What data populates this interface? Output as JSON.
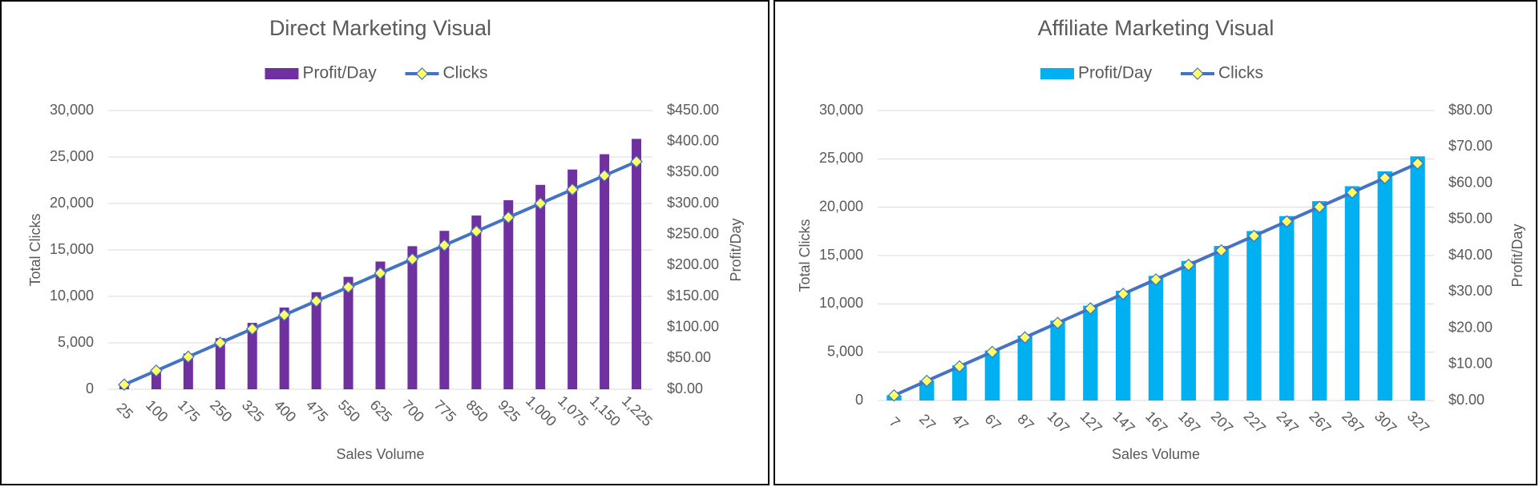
{
  "chart_data": [
    {
      "type": "combo",
      "title": "Direct Marketing Visual",
      "x_label": "Sales Volume",
      "y_label": "Total Clicks",
      "y2_label": "Profit/Day",
      "legend": "top",
      "grid": true,
      "categories": [
        "25",
        "100",
        "175",
        "250",
        "325",
        "400",
        "475",
        "550",
        "625",
        "700",
        "775",
        "850",
        "925",
        "1,000",
        "1,075",
        "1,150",
        "1,225"
      ],
      "series": [
        {
          "name": "Profit/Day",
          "type": "bar",
          "axis": "y2",
          "color": "#7030a0",
          "values": [
            8.25,
            33,
            57.75,
            82.5,
            107.25,
            132,
            156.75,
            181.5,
            206.25,
            231,
            255.75,
            280.5,
            305.25,
            330,
            354.75,
            379.5,
            404.25
          ]
        },
        {
          "name": "Clicks",
          "type": "line",
          "color": "#4472c4",
          "marker_color": "#ffff66",
          "values": [
            500,
            2000,
            3500,
            5000,
            6500,
            8000,
            9500,
            11000,
            12500,
            14000,
            15500,
            17000,
            18500,
            20000,
            21500,
            23000,
            24500
          ]
        }
      ],
      "ylim": [
        0,
        30000
      ],
      "yticks": [
        0,
        {
          "value": 5000,
          "label": "5,000"
        },
        {
          "value": 10000,
          "label": "10,000"
        },
        {
          "value": 15000,
          "label": "15,000"
        },
        {
          "value": 20000,
          "label": "20,000"
        },
        {
          "value": 25000,
          "label": "25,000"
        },
        {
          "value": 30000,
          "label": "30,000"
        }
      ],
      "y2lim": [
        0,
        450
      ],
      "y2ticks": [
        {
          "value": 0,
          "label": "$0.00"
        },
        {
          "value": 50,
          "label": "$50.00"
        },
        {
          "value": 100,
          "label": "$100.00"
        },
        {
          "value": 150,
          "label": "$150.00"
        },
        {
          "value": 200,
          "label": "$200.00"
        },
        {
          "value": 250,
          "label": "$250.00"
        },
        {
          "value": 300,
          "label": "$300.00"
        },
        {
          "value": 350,
          "label": "$350.00"
        },
        {
          "value": 400,
          "label": "$400.00"
        },
        {
          "value": 450,
          "label": "$450.00"
        }
      ]
    },
    {
      "type": "combo",
      "title": "Affiliate Marketing Visual",
      "x_label": "Sales Volume",
      "y_label": "Total Clicks",
      "y2_label": "Profit/Day",
      "legend": "top",
      "grid": true,
      "categories": [
        "7",
        "27",
        "47",
        "67",
        "87",
        "107",
        "127",
        "147",
        "167",
        "187",
        "207",
        "227",
        "247",
        "267",
        "287",
        "307",
        "327"
      ],
      "series": [
        {
          "name": "Profit/Day",
          "type": "bar",
          "axis": "y2",
          "color": "#00b0f0",
          "values": [
            1.44,
            5.56,
            9.68,
            13.8,
            17.92,
            22.04,
            26.16,
            30.28,
            34.4,
            38.52,
            42.64,
            46.76,
            50.88,
            55,
            59.12,
            63.24,
            67.36
          ]
        },
        {
          "name": "Clicks",
          "type": "line",
          "color": "#4472c4",
          "marker_color": "#ffff66",
          "values": [
            525,
            2025,
            3525,
            5025,
            6525,
            8025,
            9525,
            11025,
            12525,
            14025,
            15525,
            17025,
            18525,
            20025,
            21525,
            23025,
            24525
          ]
        }
      ],
      "ylim": [
        0,
        30000
      ],
      "yticks": [
        0,
        {
          "value": 5000,
          "label": "5,000"
        },
        {
          "value": 10000,
          "label": "10,000"
        },
        {
          "value": 15000,
          "label": "15,000"
        },
        {
          "value": 20000,
          "label": "20,000"
        },
        {
          "value": 25000,
          "label": "25,000"
        },
        {
          "value": 30000,
          "label": "30,000"
        }
      ],
      "y2lim": [
        0,
        80
      ],
      "y2ticks": [
        {
          "value": 0,
          "label": "$0.00"
        },
        {
          "value": 10,
          "label": "$10.00"
        },
        {
          "value": 20,
          "label": "$20.00"
        },
        {
          "value": 30,
          "label": "$30.00"
        },
        {
          "value": 40,
          "label": "$40.00"
        },
        {
          "value": 50,
          "label": "$50.00"
        },
        {
          "value": 60,
          "label": "$60.00"
        },
        {
          "value": 70,
          "label": "$70.00"
        },
        {
          "value": 80,
          "label": "$80.00"
        }
      ]
    }
  ]
}
